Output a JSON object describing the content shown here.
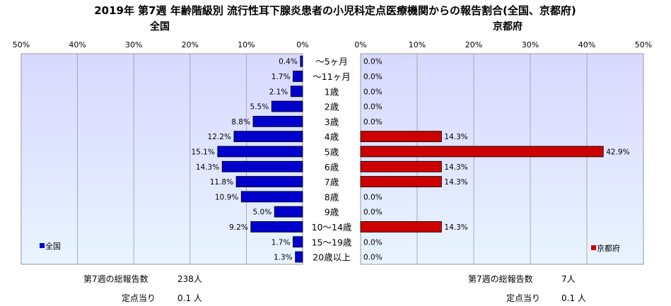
{
  "title": "2019年 第7週 年齢階級別 流行性耳下腺炎患者の小児科定点医療機関からの報告割合(全国、京都府)",
  "colors": {
    "national": "#0000cc",
    "kyoto": "#cc0000",
    "left_bg_top": "#dcdcff",
    "right_bg_top": "#dcdcff"
  },
  "chart_data": {
    "type": "bar",
    "orientation": "horizontal",
    "categories": [
      "～5ヶ月",
      "～11ヶ月",
      "1歳",
      "2歳",
      "3歳",
      "4歳",
      "5歳",
      "6歳",
      "7歳",
      "8歳",
      "9歳",
      "10～14歳",
      "15～19歳",
      "20歳以上"
    ],
    "panels": [
      {
        "name": "全国",
        "legend": "全国",
        "direction": "left",
        "xlim": [
          0,
          50
        ],
        "ticks": [
          "50%",
          "40%",
          "30%",
          "20%",
          "10%",
          "0%"
        ],
        "values": [
          0.4,
          1.7,
          2.1,
          5.5,
          8.8,
          12.2,
          15.1,
          14.3,
          11.8,
          10.9,
          5.0,
          9.2,
          1.7,
          1.3
        ],
        "labels": [
          "0.4%",
          "1.7%",
          "2.1%",
          "5.5%",
          "8.8%",
          "12.2%",
          "15.1%",
          "14.3%",
          "11.8%",
          "10.9%",
          "5.0%",
          "9.2%",
          "1.7%",
          "1.3%"
        ]
      },
      {
        "name": "京都府",
        "legend": "京都府",
        "direction": "right",
        "xlim": [
          0,
          50
        ],
        "ticks": [
          "0%",
          "10%",
          "20%",
          "30%",
          "40%",
          "50%"
        ],
        "values": [
          0.0,
          0.0,
          0.0,
          0.0,
          0.0,
          14.3,
          42.9,
          14.3,
          14.3,
          0.0,
          0.0,
          14.3,
          0.0,
          0.0
        ],
        "labels": [
          "0.0%",
          "0.0%",
          "0.0%",
          "0.0%",
          "0.0%",
          "14.3%",
          "42.9%",
          "14.3%",
          "14.3%",
          "0.0%",
          "0.0%",
          "14.3%",
          "0.0%",
          "0.0%"
        ]
      }
    ]
  },
  "footer": {
    "left": {
      "total_label": "第7週の総報告数",
      "total_value": "238人",
      "per_label": "定点当り",
      "per_value": "0.1 人"
    },
    "right": {
      "total_label": "第7週の総報告数",
      "total_value": "7人",
      "per_label": "定点当り",
      "per_value": "0.1 人"
    }
  }
}
